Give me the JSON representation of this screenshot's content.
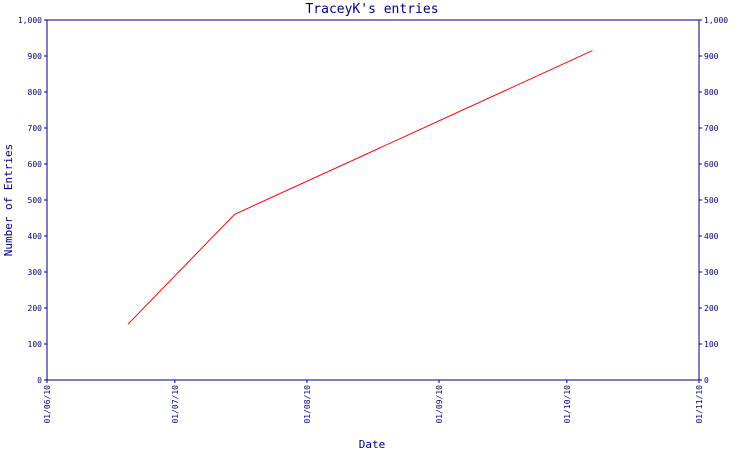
{
  "chart_data": {
    "type": "line",
    "title": "TraceyK's entries",
    "xlabel": "Date",
    "ylabel": "Number of Entries",
    "x_ticks": [
      "01/06/10",
      "01/07/10",
      "01/08/10",
      "01/09/10",
      "01/10/10",
      "01/11/10"
    ],
    "y_ticks": [
      "0",
      "100",
      "200",
      "300",
      "400",
      "500",
      "600",
      "700",
      "800",
      "900",
      "1,000"
    ],
    "ylim": [
      0,
      1000
    ],
    "grid": false,
    "series": [
      {
        "color": "#ff0000",
        "points": [
          {
            "x": "2010-06-20",
            "y": 155
          },
          {
            "x": "2010-07-15",
            "y": 460
          },
          {
            "x": "2010-10-07",
            "y": 915
          }
        ]
      }
    ]
  },
  "colors": {
    "axis": "#000080",
    "series": "#ff0000"
  }
}
